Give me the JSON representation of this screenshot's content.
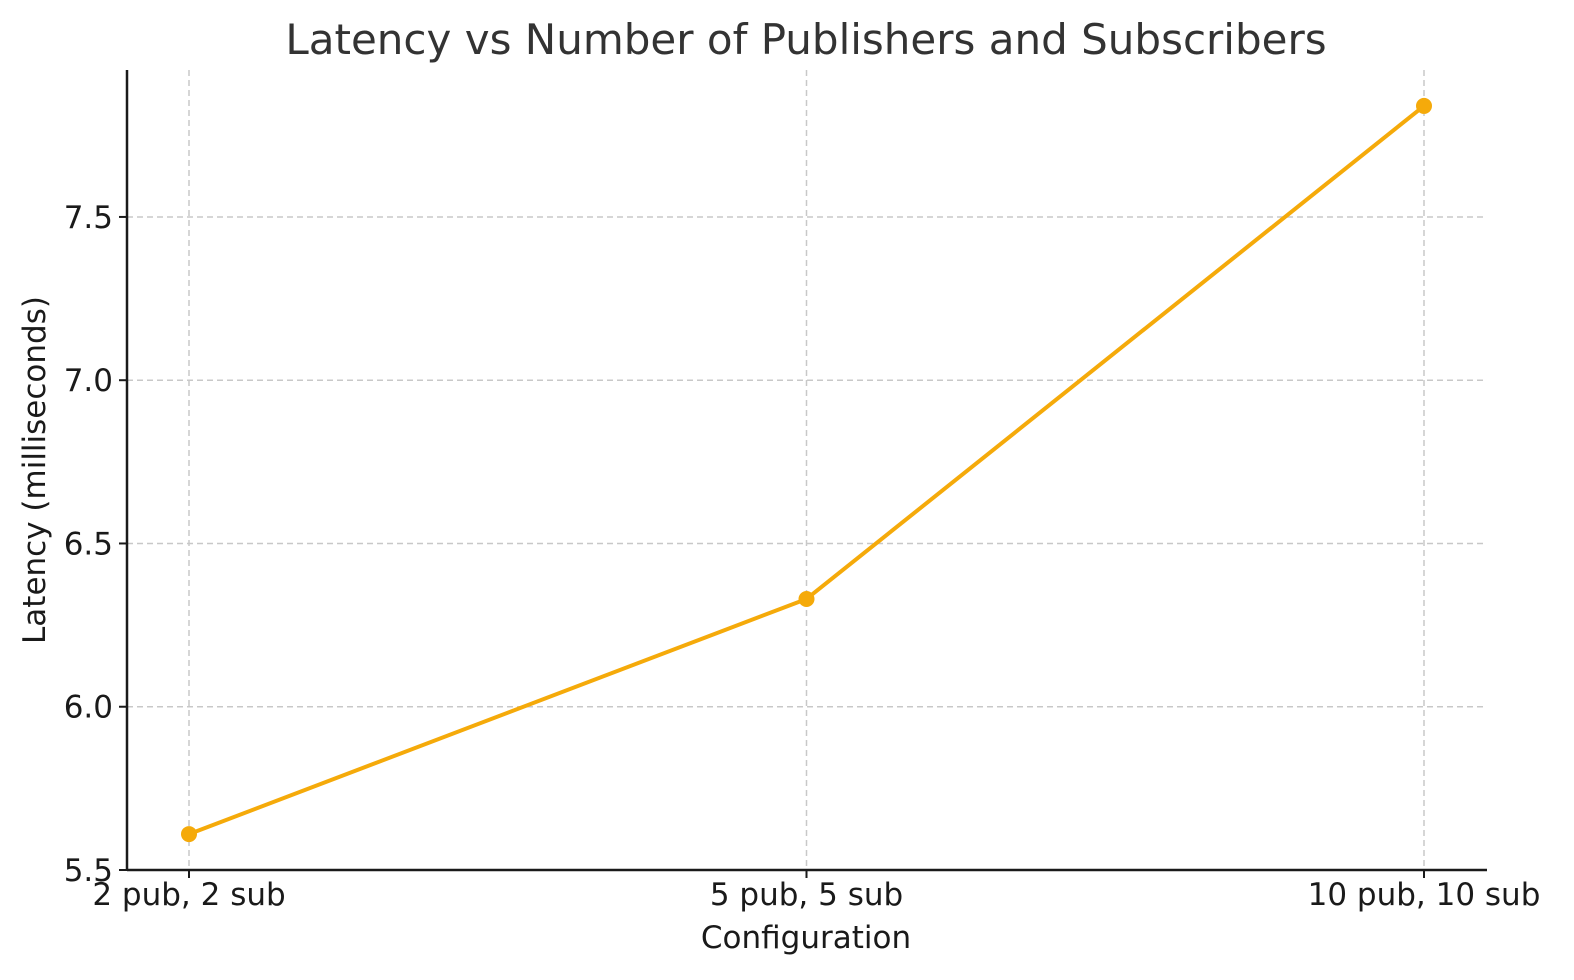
{
  "chart_data": {
    "type": "line",
    "title": "Latency vs Number of Publishers and Subscribers",
    "xlabel": "Configuration",
    "ylabel": "Latency (milliseconds)",
    "categories": [
      "2 pub, 2 sub",
      "5 pub, 5 sub",
      "10 pub, 10 sub"
    ],
    "series": [
      {
        "values": [
          5.61,
          6.33,
          7.84
        ],
        "color": "#f5aa0a"
      }
    ],
    "ylim": [
      5.5,
      7.95
    ],
    "yticks": [
      5.5,
      6.0,
      6.5,
      7.0,
      7.5
    ],
    "ytick_labels": [
      "5.5",
      "6.0",
      "6.5",
      "7.0",
      "7.5"
    ],
    "grid": true,
    "legend": "none"
  }
}
